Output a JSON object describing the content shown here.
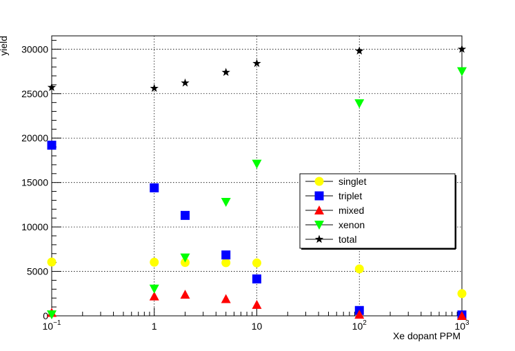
{
  "chart_data": {
    "type": "scatter",
    "title": "",
    "xlabel": "Xe dopant PPM",
    "ylabel": "yield",
    "xscale": "log",
    "xlim": [
      0.1,
      1000
    ],
    "ylim": [
      0,
      31500
    ],
    "grid": true,
    "legend_position": "center-right",
    "x_ticks": [
      {
        "value": 0.1,
        "base": "10",
        "exp": "−1"
      },
      {
        "value": 1,
        "base": "1",
        "exp": ""
      },
      {
        "value": 10,
        "base": "10",
        "exp": ""
      },
      {
        "value": 100,
        "base": "10",
        "exp": "2"
      },
      {
        "value": 1000,
        "base": "10",
        "exp": "3"
      }
    ],
    "y_ticks": [
      {
        "value": 0,
        "label": "0"
      },
      {
        "value": 5000,
        "label": "5000"
      },
      {
        "value": 10000,
        "label": "10000"
      },
      {
        "value": 15000,
        "label": "15000"
      },
      {
        "value": 20000,
        "label": "20000"
      },
      {
        "value": 25000,
        "label": "25000"
      },
      {
        "value": 30000,
        "label": "30000"
      }
    ],
    "series": [
      {
        "name": "singlet",
        "marker": "circle",
        "color": "#ffff00",
        "points": [
          [
            0.1,
            6050
          ],
          [
            1,
            6030
          ],
          [
            2,
            6000
          ],
          [
            5,
            5980
          ],
          [
            10,
            5950
          ],
          [
            100,
            5280
          ],
          [
            1000,
            2500
          ]
        ]
      },
      {
        "name": "triplet",
        "marker": "square",
        "color": "#0000ff",
        "points": [
          [
            0.1,
            19200
          ],
          [
            1,
            14400
          ],
          [
            2,
            11300
          ],
          [
            5,
            6850
          ],
          [
            10,
            4150
          ],
          [
            100,
            600
          ],
          [
            1000,
            100
          ]
        ]
      },
      {
        "name": "mixed",
        "marker": "triangle-up",
        "color": "#ff0000",
        "points": [
          [
            0.1,
            350
          ],
          [
            1,
            2200
          ],
          [
            2,
            2400
          ],
          [
            5,
            1900
          ],
          [
            10,
            1250
          ],
          [
            100,
            150
          ],
          [
            1000,
            0
          ]
        ]
      },
      {
        "name": "xenon",
        "marker": "triangle-down",
        "color": "#00ff00",
        "points": [
          [
            0.1,
            150
          ],
          [
            1,
            3050
          ],
          [
            2,
            6550
          ],
          [
            5,
            12800
          ],
          [
            10,
            17100
          ],
          [
            100,
            23900
          ],
          [
            1000,
            27500
          ]
        ]
      },
      {
        "name": "total",
        "marker": "star",
        "color": "#000000",
        "points": [
          [
            0.1,
            25700
          ],
          [
            1,
            25600
          ],
          [
            2,
            26200
          ],
          [
            5,
            27400
          ],
          [
            10,
            28400
          ],
          [
            100,
            29800
          ],
          [
            1000,
            30000
          ]
        ]
      }
    ]
  }
}
